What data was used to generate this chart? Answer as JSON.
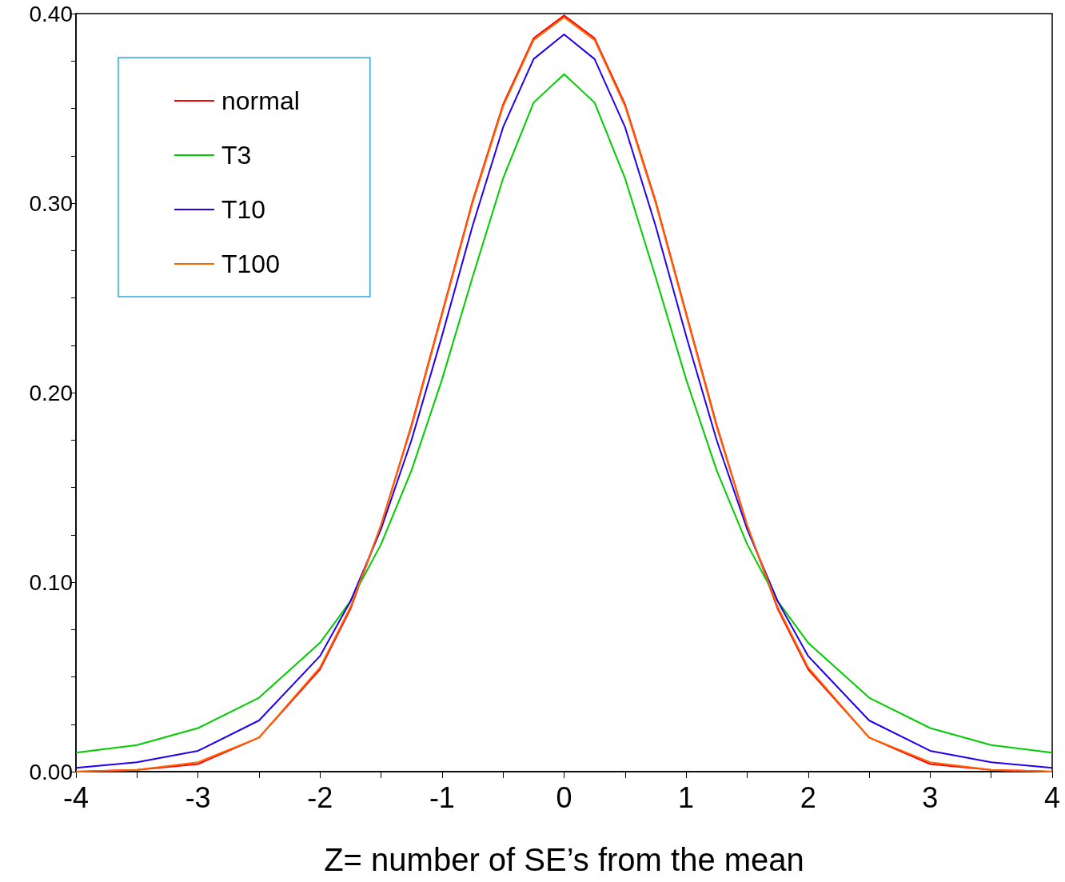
{
  "chart_data": {
    "type": "line",
    "xlabel": "Z= number of SE’s from the mean",
    "x": [
      -4,
      -3.5,
      -3,
      -2.5,
      -2,
      -1.75,
      -1.5,
      -1.25,
      -1,
      -0.75,
      -0.5,
      -0.25,
      0,
      0.25,
      0.5,
      0.75,
      1,
      1.25,
      1.5,
      1.75,
      2,
      2.5,
      3,
      3.5,
      4
    ],
    "series": [
      {
        "name": "normal",
        "color": "#ff0000",
        "values": [
          0.0,
          0.001,
          0.004,
          0.018,
          0.054,
          0.086,
          0.13,
          0.183,
          0.242,
          0.301,
          0.352,
          0.387,
          0.399,
          0.387,
          0.352,
          0.301,
          0.242,
          0.183,
          0.13,
          0.086,
          0.054,
          0.018,
          0.004,
          0.001,
          0.0
        ]
      },
      {
        "name": "T3",
        "color": "#00cc00",
        "values": [
          0.01,
          0.014,
          0.023,
          0.039,
          0.068,
          0.09,
          0.12,
          0.159,
          0.207,
          0.261,
          0.313,
          0.353,
          0.368,
          0.353,
          0.313,
          0.261,
          0.207,
          0.159,
          0.12,
          0.09,
          0.068,
          0.039,
          0.023,
          0.014,
          0.01
        ]
      },
      {
        "name": "T10",
        "color": "#2200ee",
        "values": [
          0.002,
          0.005,
          0.011,
          0.027,
          0.061,
          0.09,
          0.128,
          0.175,
          0.23,
          0.288,
          0.34,
          0.376,
          0.389,
          0.376,
          0.34,
          0.288,
          0.23,
          0.175,
          0.128,
          0.09,
          0.061,
          0.027,
          0.011,
          0.005,
          0.002
        ]
      },
      {
        "name": "T100",
        "color": "#ff6600",
        "values": [
          0.0,
          0.001,
          0.005,
          0.018,
          0.055,
          0.087,
          0.13,
          0.182,
          0.241,
          0.3,
          0.351,
          0.386,
          0.398,
          0.386,
          0.351,
          0.3,
          0.241,
          0.182,
          0.13,
          0.087,
          0.055,
          0.018,
          0.005,
          0.001,
          0.0
        ]
      }
    ],
    "xlim": [
      -4,
      4
    ],
    "xticks": [
      -4,
      {
        "value": -3.5,
        "label": null
      },
      -3,
      {
        "value": -2.5,
        "label": null
      },
      -2,
      {
        "value": -1.5,
        "label": null
      },
      -1,
      {
        "value": -0.5,
        "label": null
      },
      0,
      {
        "value": 0.5,
        "label": null
      },
      1,
      {
        "value": 1.5,
        "label": null
      },
      2,
      {
        "value": 2.5,
        "label": null
      },
      3,
      {
        "value": 3.5,
        "label": null
      },
      4
    ],
    "ylim": [
      0,
      0.4
    ],
    "yticks": [
      {
        "value": 0,
        "label": "0.00"
      },
      {
        "value": 0.025,
        "label": null
      },
      {
        "value": 0.05,
        "label": null
      },
      {
        "value": 0.075,
        "label": null
      },
      {
        "value": 0.1,
        "label": "0.10"
      },
      {
        "value": 0.125,
        "label": null
      },
      {
        "value": 0.15,
        "label": null
      },
      {
        "value": 0.175,
        "label": null
      },
      {
        "value": 0.2,
        "label": "0.20"
      },
      {
        "value": 0.225,
        "label": null
      },
      {
        "value": 0.25,
        "label": null
      },
      {
        "value": 0.275,
        "label": null
      },
      {
        "value": 0.3,
        "label": "0.30"
      },
      {
        "value": 0.325,
        "label": null
      },
      {
        "value": 0.35,
        "label": null
      },
      {
        "value": 0.375,
        "label": null
      },
      {
        "value": 0.4,
        "label": "0.40"
      }
    ],
    "grid": false,
    "legend": "top left",
    "marker": "none",
    "line_style": "solid"
  }
}
